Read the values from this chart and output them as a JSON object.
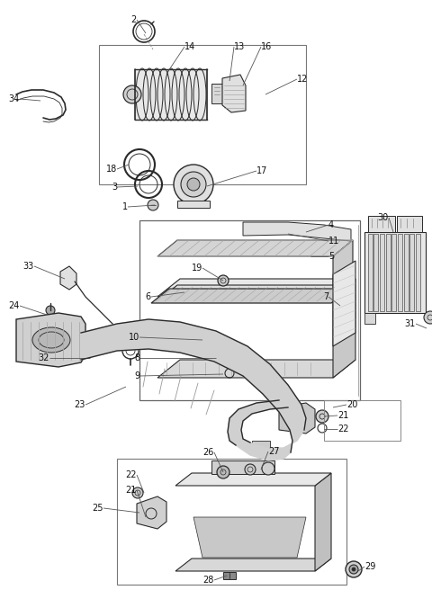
{
  "bg_color": "#ffffff",
  "fig_width": 4.8,
  "fig_height": 6.56,
  "dpi": 100,
  "line_color": "#2a2a2a",
  "gray_fill": "#d8d8d8",
  "light_fill": "#eeeeee",
  "mid_fill": "#c8c8c8",
  "box_edge": "#555555",
  "label_color": "#111111",
  "leader_color": "#555555"
}
